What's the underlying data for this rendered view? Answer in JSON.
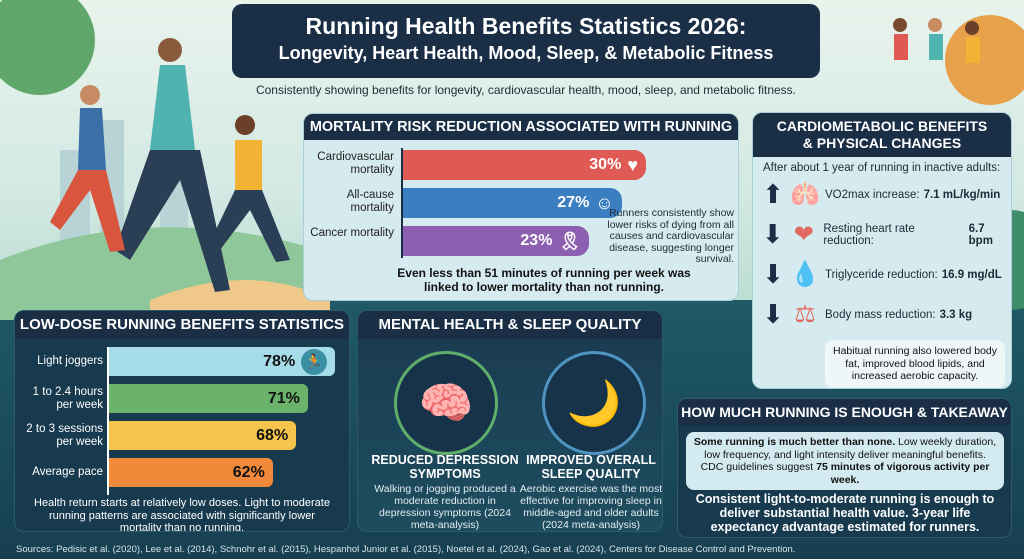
{
  "title": "Running Health Benefits Statistics 2026:",
  "subtitle": "Longevity, Heart Health, Mood, Sleep, & Metabolic Fitness",
  "tagline": "Consistently showing benefits for longevity, cardiovascular health, mood, sleep, and metabolic fitness.",
  "colors": {
    "navy": "#1a2e45",
    "cardio": "#e05a55",
    "allcause": "#3b7fc0",
    "cancer": "#8c5fb0",
    "light_joggers": "#a6dbe8",
    "hours": "#6bb36a",
    "sessions": "#f4c54a",
    "pace": "#f08a3a"
  },
  "mortality": {
    "header": "MORTALITY RISK REDUCTION ASSOCIATED WITH RUNNING",
    "side_note": "Runners consistently show lower risks of dying from all causes and cardiovascular disease, suggesting longer survival.",
    "footnote": "Even less than 51 minutes of running per week was linked to lower mortality than not running."
  },
  "cardiometabolic": {
    "header": "CARDIOMETABOLIC BENEFITS & PHYSICAL CHANGES",
    "intro": "After about 1 year of running in inactive adults:",
    "items": [
      {
        "direction": "up",
        "icon": "lungs-icon",
        "label": "VO2max increase:",
        "value": "7.1 mL/kg/min"
      },
      {
        "direction": "down",
        "icon": "heart-stopwatch-icon",
        "label": "Resting heart rate reduction:",
        "value": "6.7 bpm"
      },
      {
        "direction": "down",
        "icon": "blood-drop-icon",
        "label": "Triglyceride reduction:",
        "value": "16.9 mg/dL"
      },
      {
        "direction": "down",
        "icon": "scale-icon",
        "label": "Body mass reduction:",
        "value": "3.3 kg"
      }
    ],
    "note": "Habitual running also lowered body fat, improved blood lipids, and increased aerobic capacity."
  },
  "low_dose": {
    "header": "LOW-DOSE RUNNING BENEFITS STATISTICS",
    "note": "Health return starts at relatively low doses. Light to moderate running patterns are associated with significantly lower mortality than no running."
  },
  "mental": {
    "header": "MENTAL HEALTH & SLEEP QUALITY",
    "items": [
      {
        "icon": "brain-icon",
        "title": "REDUCED DEPRESSION SYMPTOMS",
        "text": "Walking or jogging produced a moderate reduction in depression symptoms (2024 meta-analysis)"
      },
      {
        "icon": "moon-sleep-icon",
        "title": "IMPROVED OVERALL SLEEP QUALITY",
        "text": "Aerobic exercise was the most effective for improving sleep in middle-aged and older adults (2024 meta-analysis)"
      }
    ]
  },
  "takeaway": {
    "header": "HOW MUCH RUNNING IS ENOUGH & TAKEAWAY",
    "box_bold1": "Some running is much better than none.",
    "box_text": " Low weekly duration, low frequency, and light intensity deliver meaningful benefits. CDC guidelines suggest ",
    "box_bold2": "75 minutes of vigorous activity per week.",
    "conclusion": "Consistent light-to-moderate running is enough to deliver substantial health value. 3-year life expectancy advantage estimated for runners."
  },
  "sources": "Sources: Pedisic et al. (2020), Lee et al. (2014), Schnohr et al. (2015), Hespanhol Junior et al. (2015), Noetel et al. (2024), Gao et al. (2024), Centers for Disease Control and Prevention.",
  "chart_data": [
    {
      "type": "bar",
      "orientation": "horizontal",
      "title": "MORTALITY RISK REDUCTION ASSOCIATED WITH RUNNING",
      "categories": [
        "Cardiovascular mortality",
        "All-cause mortality",
        "Cancer mortality"
      ],
      "values": [
        30,
        27,
        23
      ],
      "labels": [
        "30%",
        "27%",
        "23%"
      ],
      "unit": "%",
      "icons": [
        "heart-pulse-icon",
        "person-icon",
        "ribbon-icon"
      ]
    },
    {
      "type": "bar",
      "orientation": "horizontal",
      "title": "LOW-DOSE RUNNING BENEFITS STATISTICS",
      "categories": [
        "Light joggers",
        "1 to 2.4 hours per week",
        "2 to 3 sessions per week",
        "Average pace"
      ],
      "values": [
        78,
        71,
        68,
        62
      ],
      "labels": [
        "78%",
        "71%",
        "68%",
        "62%"
      ],
      "unit": "%",
      "icons": [
        "runner-icon",
        null,
        null,
        null
      ]
    }
  ]
}
